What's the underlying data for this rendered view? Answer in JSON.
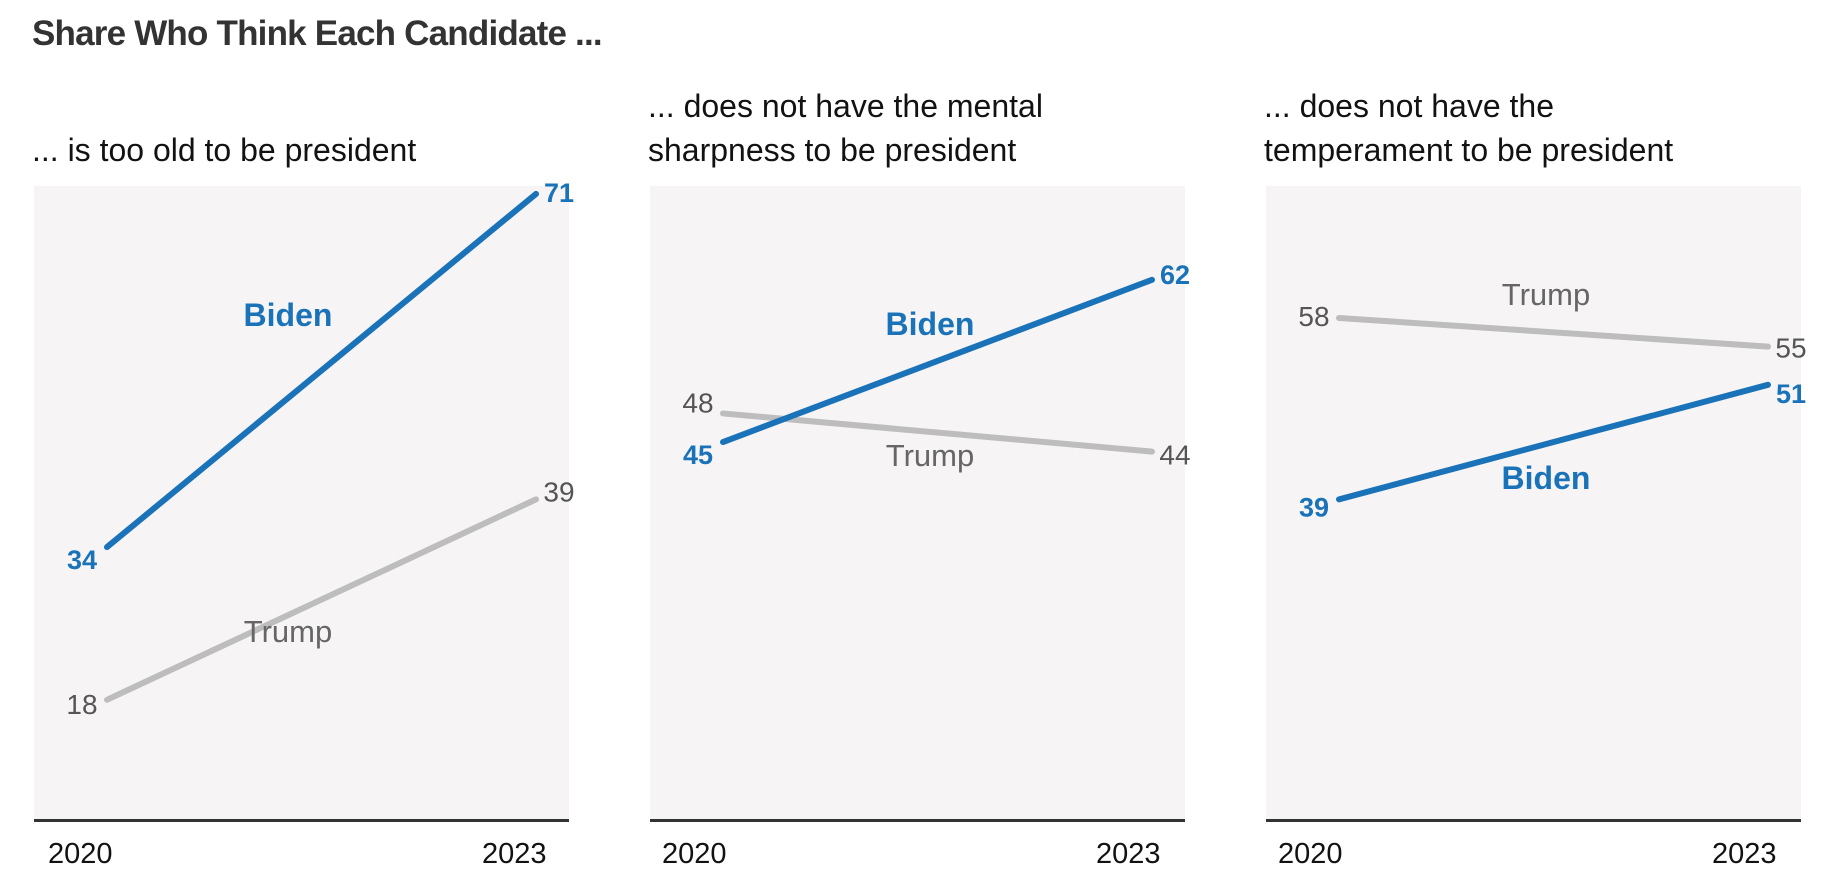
{
  "title": "Share Who Think Each Candidate ...",
  "colors": {
    "biden": "#1a73b8",
    "trump": "#bdbdbd"
  },
  "chart_data": [
    {
      "type": "line",
      "title": "... is too old to be president",
      "title_lines": [
        "... is too old to be president"
      ],
      "categories": [
        "2020",
        "2023"
      ],
      "ylim": [
        0,
        80
      ],
      "series": [
        {
          "name": "Biden",
          "values": [
            34,
            71
          ]
        },
        {
          "name": "Trump",
          "values": [
            18,
            39
          ]
        }
      ]
    },
    {
      "type": "line",
      "title": "... does not have the mental sharpness to be president",
      "title_lines": [
        "... does not have the mental",
        "sharpness to be president"
      ],
      "categories": [
        "2020",
        "2023"
      ],
      "ylim": [
        0,
        80
      ],
      "series": [
        {
          "name": "Biden",
          "values": [
            45,
            62
          ]
        },
        {
          "name": "Trump",
          "values": [
            48,
            44
          ]
        }
      ]
    },
    {
      "type": "line",
      "title": "... does not have the temperament to be president",
      "title_lines": [
        "... does not have the",
        "temperament to be president"
      ],
      "categories": [
        "2020",
        "2023"
      ],
      "ylim": [
        0,
        80
      ],
      "series": [
        {
          "name": "Biden",
          "values": [
            39,
            51
          ]
        },
        {
          "name": "Trump",
          "values": [
            58,
            55
          ]
        }
      ]
    }
  ]
}
